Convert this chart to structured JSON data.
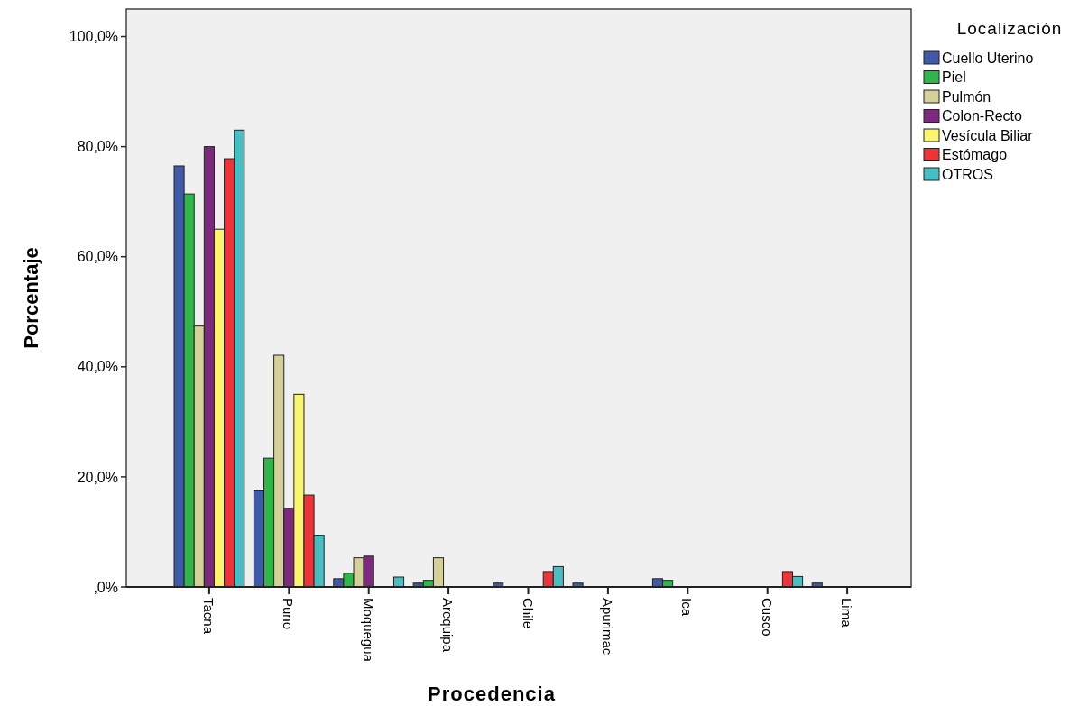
{
  "chart_data": {
    "type": "bar",
    "xlabel": "Procedencia",
    "ylabel": "Porcentaje",
    "legend_title": "Localización",
    "legend": "right",
    "grid": false,
    "categories": [
      "Tacna",
      "Puno",
      "Moquegua",
      "Arequipa",
      "Chile",
      "Apurimac",
      "Ica",
      "Cusco",
      "Lima"
    ],
    "ylim": [
      0,
      105
    ],
    "yticks": [
      {
        "value": 0,
        "label": ",0%"
      },
      {
        "value": 20,
        "label": "20,0%"
      },
      {
        "value": 40,
        "label": "40,0%"
      },
      {
        "value": 60,
        "label": "60,0%"
      },
      {
        "value": 80,
        "label": "80,0%"
      },
      {
        "value": 100,
        "label": "100,0%"
      }
    ],
    "series": [
      {
        "name": "Cuello Uterino",
        "color": "#3f5aa8",
        "values": [
          76.5,
          17.6,
          1.5,
          0.7,
          0.7,
          0.7,
          1.5,
          0,
          0.7
        ]
      },
      {
        "name": "Piel",
        "color": "#2fb84a",
        "values": [
          71.4,
          23.4,
          2.5,
          1.2,
          0,
          0,
          1.2,
          0,
          0
        ]
      },
      {
        "name": "Pulmón",
        "color": "#d5cf98",
        "values": [
          47.4,
          42.1,
          5.3,
          5.3,
          0,
          0,
          0,
          0,
          0
        ]
      },
      {
        "name": "Colon-Recto",
        "color": "#7b2a7e",
        "values": [
          80,
          14.3,
          5.6,
          0,
          0,
          0,
          0,
          0,
          0
        ]
      },
      {
        "name": "Vesícula Biliar",
        "color": "#faf56a",
        "values": [
          65,
          35,
          0,
          0,
          0,
          0,
          0,
          0,
          0
        ]
      },
      {
        "name": "Estómago",
        "color": "#ee3438",
        "values": [
          77.8,
          16.7,
          0,
          0,
          2.8,
          0,
          0,
          2.8,
          0
        ]
      },
      {
        "name": "OTROS",
        "color": "#47bfc2",
        "values": [
          83,
          9.4,
          1.8,
          0,
          3.7,
          0,
          0,
          1.9,
          0
        ]
      }
    ]
  }
}
